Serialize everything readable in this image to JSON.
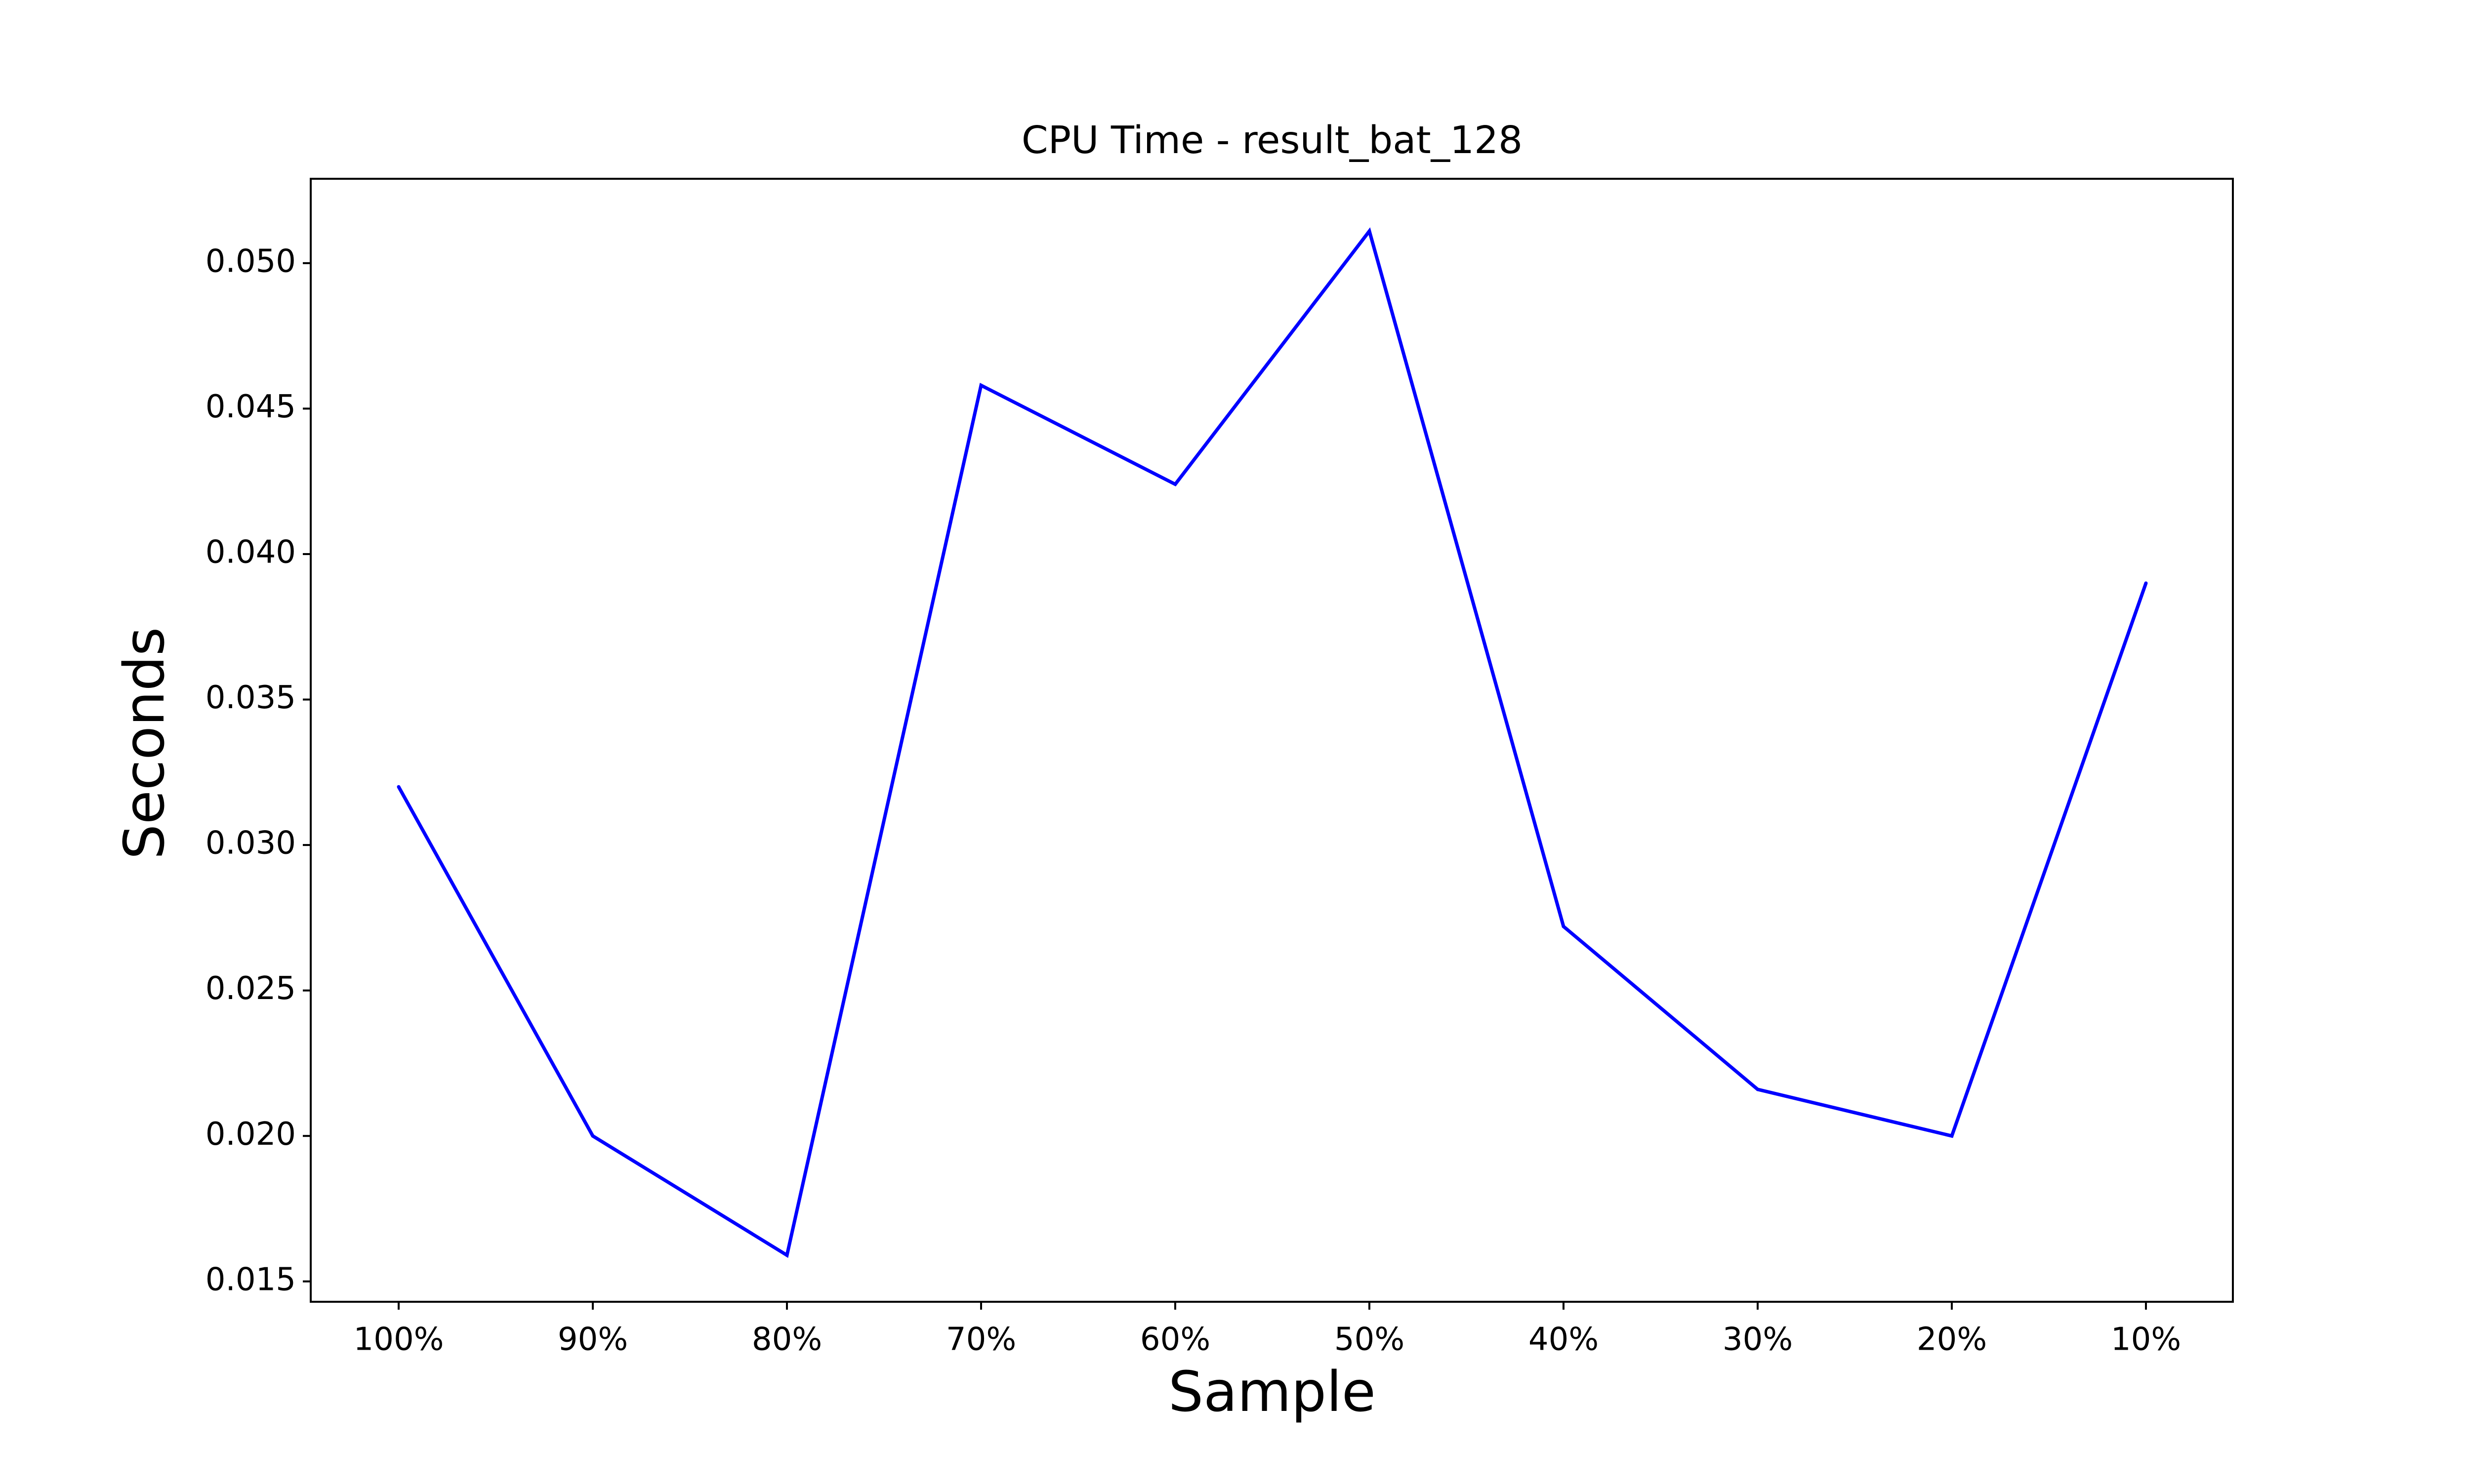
{
  "chart_data": {
    "type": "line",
    "title": "CPU Time - result_bat_128",
    "xlabel": "Sample",
    "ylabel": "Seconds",
    "categories": [
      "100%",
      "90%",
      "80%",
      "70%",
      "60%",
      "50%",
      "40%",
      "30%",
      "20%",
      "10%"
    ],
    "series": [
      {
        "values": [
          0.032,
          0.02,
          0.0159,
          0.0458,
          0.0424,
          0.0511,
          0.0272,
          0.0216,
          0.02,
          0.039
        ],
        "color": "#0000ff"
      }
    ],
    "yticks": [
      0.015,
      0.02,
      0.025,
      0.03,
      0.035,
      0.04,
      0.045,
      0.05
    ],
    "ytick_labels": [
      "0.015",
      "0.020",
      "0.025",
      "0.030",
      "0.035",
      "0.040",
      "0.045",
      "0.050"
    ],
    "ylim": [
      0.0143,
      0.0529
    ],
    "grid": false,
    "legend": false
  }
}
